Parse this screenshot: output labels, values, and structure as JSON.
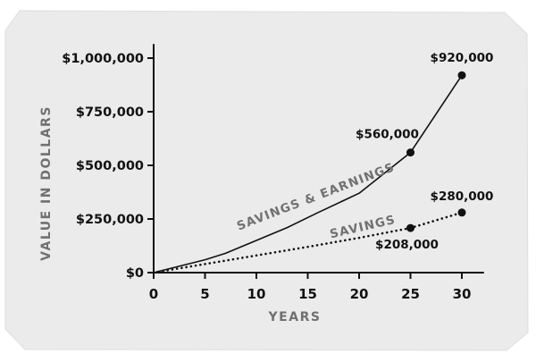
{
  "chart_data": {
    "type": "line",
    "title": "",
    "xlabel": "YEARS",
    "ylabel": "VALUE IN DOLLARS",
    "xlim": [
      0,
      30
    ],
    "ylim": [
      0,
      1000000
    ],
    "x_ticks": [
      0,
      5,
      10,
      15,
      20,
      25,
      30
    ],
    "x_tick_labels": [
      "0",
      "5",
      "10",
      "15",
      "20",
      "25",
      "30"
    ],
    "y_ticks": [
      0,
      250000,
      500000,
      750000,
      1000000
    ],
    "y_tick_labels": [
      "$0",
      "$250,000",
      "$500,000",
      "$750,000",
      "$1,000,000"
    ],
    "grid": false,
    "legend": "none",
    "series": [
      {
        "name": "SAVINGS & EARNINGS",
        "style": "solid",
        "color": "#111111",
        "x": [
          0,
          5,
          7,
          10,
          13,
          16,
          20,
          25,
          30
        ],
        "y": [
          0,
          60000,
          90000,
          150000,
          210000,
          280000,
          370000,
          560000,
          920000
        ],
        "markers": [
          {
            "x": 25,
            "y": 560000,
            "label": "$560,000"
          },
          {
            "x": 30,
            "y": 920000,
            "label": "$920,000"
          }
        ]
      },
      {
        "name": "SAVINGS",
        "style": "dotted",
        "color": "#111111",
        "x": [
          0,
          5,
          10,
          15,
          20,
          25,
          30
        ],
        "y": [
          0,
          40000,
          80000,
          120000,
          162000,
          208000,
          280000
        ],
        "markers": [
          {
            "x": 25,
            "y": 208000,
            "label": "$208,000"
          },
          {
            "x": 30,
            "y": 280000,
            "label": "$280,000"
          }
        ]
      }
    ]
  },
  "colors": {
    "background": "#ebebeb",
    "ink": "#111111",
    "muted_text": "#707070"
  }
}
